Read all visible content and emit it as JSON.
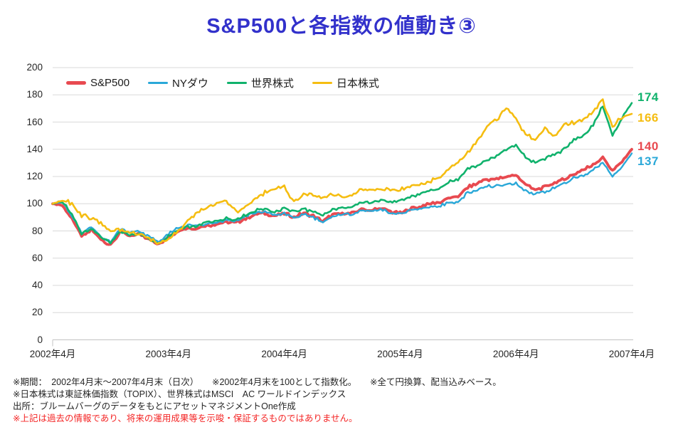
{
  "title": "S&P500と各指数の値動き③",
  "colors": {
    "title": "#3231cb",
    "grid": "#d9d9d9",
    "axis_line": "#c3c3c3",
    "axis_text": "#262626",
    "note_text": "#262626",
    "note_alert": "#f42525",
    "sp500": "#e84a50",
    "nydow": "#2aa8d8",
    "world": "#10b26c",
    "japan": "#f5bd11"
  },
  "chart_data": {
    "type": "line",
    "title": "S&P500と各指数の値動き③",
    "x_axis": {
      "tick_labels": [
        "2002年4月",
        "2003年4月",
        "2004年4月",
        "2005年4月",
        "2006年4月",
        "2007年4月"
      ],
      "unit": "months_from_2002-04",
      "range": [
        0,
        60
      ]
    },
    "y_axis": {
      "range": [
        0,
        200
      ],
      "tick_step": 20,
      "tick_labels": [
        "0",
        "20",
        "40",
        "60",
        "80",
        "100",
        "120",
        "140",
        "160",
        "180",
        "200"
      ]
    },
    "grid": "horizontal",
    "legend_position": "top-left-inside",
    "base_value_note": "2002年4月末=100",
    "series": [
      {
        "name": "S&P500",
        "color": "#e84a50",
        "end_label": "140",
        "values": [
          100,
          99,
          89,
          76,
          81,
          74,
          69,
          79,
          76,
          78,
          74,
          70,
          76,
          80,
          82,
          82,
          84,
          85,
          87,
          86,
          89,
          92,
          93,
          91,
          93,
          90,
          93,
          91,
          87,
          92,
          93,
          93,
          96,
          95,
          97,
          94,
          93,
          96,
          98,
          100,
          101,
          104,
          105,
          112,
          115,
          118,
          118,
          120,
          121,
          114,
          110,
          112,
          115,
          118,
          122,
          125,
          129,
          134,
          124,
          131,
          140
        ]
      },
      {
        "name": "NYダウ",
        "color": "#2aa8d8",
        "end_label": "137",
        "values": [
          100,
          101,
          91,
          78,
          83,
          76,
          72,
          81,
          79,
          80,
          76,
          72,
          78,
          82,
          84,
          84,
          85,
          86,
          88,
          87,
          91,
          93,
          94,
          92,
          93,
          89,
          92,
          90,
          86,
          91,
          92,
          92,
          95,
          94,
          96,
          93,
          92,
          95,
          96,
          98,
          98,
          101,
          101,
          108,
          110,
          113,
          113,
          114,
          115,
          109,
          107,
          109,
          112,
          115,
          119,
          121,
          125,
          130,
          120,
          127,
          137
        ]
      },
      {
        "name": "世界株式",
        "color": "#10b26c",
        "end_label": "174",
        "values": [
          100,
          102,
          92,
          78,
          82,
          75,
          71,
          79,
          77,
          78,
          74,
          70,
          76,
          81,
          83,
          84,
          86,
          87,
          89,
          88,
          92,
          95,
          96,
          94,
          97,
          94,
          96,
          94,
          91,
          96,
          97,
          98,
          101,
          101,
          103,
          101,
          102,
          105,
          107,
          109,
          111,
          116,
          118,
          126,
          128,
          132,
          135,
          140,
          143,
          134,
          130,
          133,
          136,
          140,
          147,
          150,
          158,
          172,
          150,
          163,
          174
        ]
      },
      {
        "name": "日本株式",
        "color": "#f5bd11",
        "end_label": "166",
        "values": [
          100,
          103,
          100,
          91,
          90,
          86,
          80,
          81,
          79,
          77,
          75,
          71,
          74,
          80,
          88,
          94,
          97,
          101,
          102,
          94,
          97,
          104,
          108,
          110,
          113,
          101,
          107,
          107,
          104,
          107,
          105,
          106,
          110,
          109,
          111,
          110,
          110,
          112,
          114,
          116,
          119,
          125,
          130,
          138,
          146,
          156,
          162,
          170,
          163,
          151,
          147,
          155,
          149,
          158,
          160,
          162,
          167,
          176,
          156,
          164,
          166
        ]
      }
    ]
  },
  "footnotes": [
    "※期間：　2002年4月末～2007年4月末（日次）　　※2002年4月末を100として指数化。　　※全て円換算、配当込みベース。",
    "※日本株式は東証株価指数（TOPIX）、世界株式はMSCI　AC ワールドインデックス",
    "出所：ブルームバーグのデータをもとにアセットマネジメントOne作成",
    "※上記は過去の情報であり、将来の運用成果等を示唆・保証するものではありません。"
  ]
}
